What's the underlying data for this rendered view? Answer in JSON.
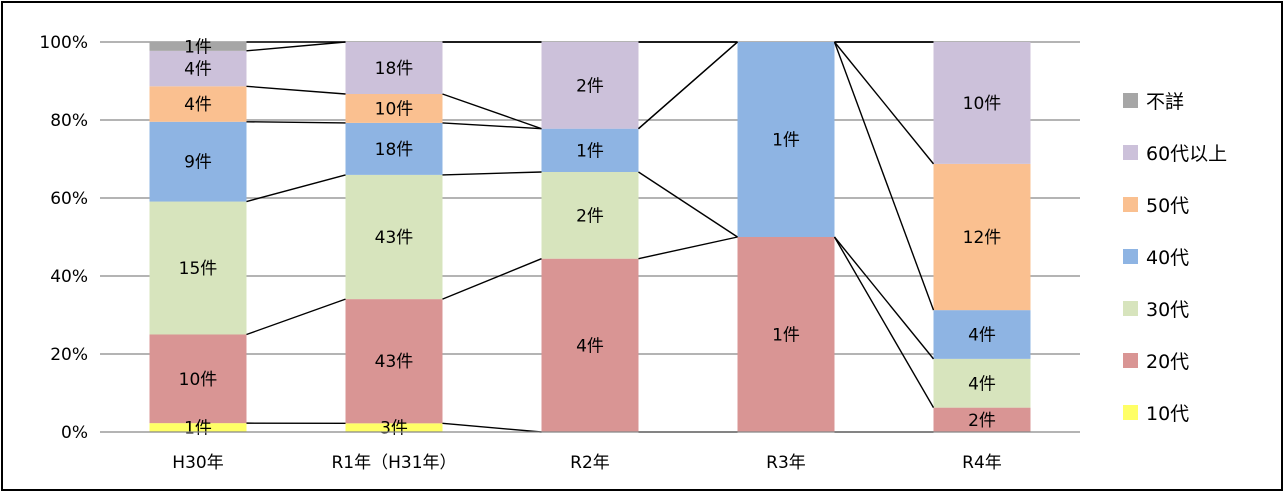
{
  "chart_data": {
    "type": "bar",
    "stacked": true,
    "percent": true,
    "categories": [
      "H30年",
      "R1年（H31年）",
      "R2年",
      "R3年",
      "R4年"
    ],
    "y_ticks": [
      "0%",
      "20%",
      "40%",
      "60%",
      "80%",
      "100%"
    ],
    "ylim": [
      0,
      100
    ],
    "grid": true,
    "legend_position": "right",
    "series": [
      {
        "name": "10代",
        "color": "#FFFF66",
        "counts": [
          1,
          3,
          0,
          0,
          0
        ],
        "labels": [
          "1件",
          "3件",
          "",
          "",
          ""
        ]
      },
      {
        "name": "20代",
        "color": "#D99594",
        "counts": [
          10,
          43,
          4,
          1,
          2
        ],
        "labels": [
          "10件",
          "43件",
          "4件",
          "1件",
          "2件"
        ]
      },
      {
        "name": "30代",
        "color": "#D7E4BD",
        "counts": [
          15,
          43,
          2,
          0,
          4
        ],
        "labels": [
          "15件",
          "43件",
          "2件",
          "",
          "4件"
        ]
      },
      {
        "name": "40代",
        "color": "#8EB4E3",
        "counts": [
          9,
          18,
          1,
          1,
          4
        ],
        "labels": [
          "9件",
          "18件",
          "1件",
          "1件",
          "4件"
        ]
      },
      {
        "name": "50代",
        "color": "#FAC090",
        "counts": [
          4,
          10,
          0,
          0,
          12
        ],
        "labels": [
          "4件",
          "10件",
          "",
          "",
          "12件"
        ]
      },
      {
        "name": "60代以上",
        "color": "#CCC1DA",
        "counts": [
          4,
          18,
          2,
          0,
          10
        ],
        "labels": [
          "4件",
          "18件",
          "2件",
          "",
          "10件"
        ]
      },
      {
        "name": "不詳",
        "color": "#A6A6A6",
        "counts": [
          1,
          0,
          0,
          0,
          0
        ],
        "labels": [
          "1件",
          "",
          "",
          "",
          ""
        ]
      }
    ],
    "legend_order": [
      "不詳",
      "60代以上",
      "50代",
      "40代",
      "30代",
      "20代",
      "10代"
    ]
  }
}
